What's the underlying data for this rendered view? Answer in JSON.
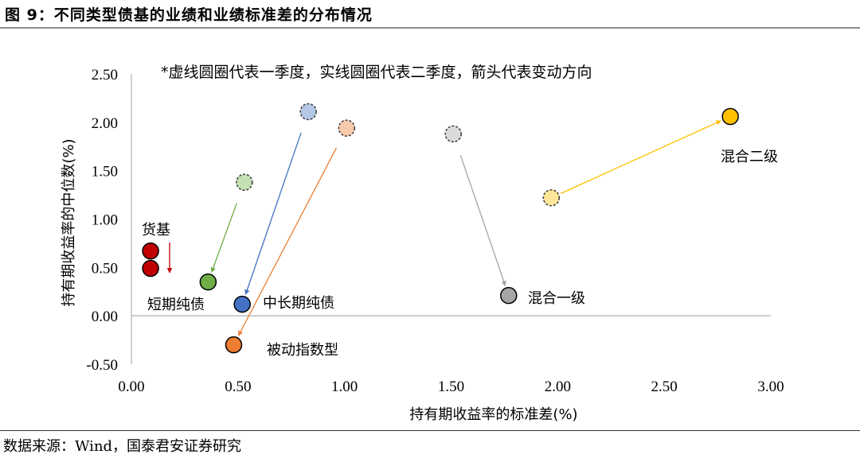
{
  "figure": {
    "title": "图 9：不同类型债基的业绩和业绩标准差的分布情况",
    "source": "数据来源：Wind，国泰君安证券研究"
  },
  "chart_data": {
    "type": "scatter",
    "title": "不同类型债基的业绩和业绩标准差的分布情况",
    "annotation": "*虚线圆圈代表一季度，实线圆圈代表二季度，箭头代表变动方向",
    "xlabel": "持有期收益率的标准差(%)",
    "ylabel": "持有期收益率的中位数(%)",
    "xlim": [
      0,
      3
    ],
    "ylim": [
      -0.5,
      2.5
    ],
    "x_ticks": [
      "0.00",
      "0.50",
      "1.00",
      "1.50",
      "2.00",
      "2.50",
      "3.00"
    ],
    "y_ticks": [
      "2.50",
      "2.00",
      "1.50",
      "1.00",
      "0.50",
      "0.00",
      "-0.50"
    ],
    "grid": false,
    "legend": "none (inline labels)",
    "series": [
      {
        "name": "货基",
        "color": "#c00000",
        "q1_color": "#c00000",
        "q1": {
          "x": 0.09,
          "y": 0.67
        },
        "q2": {
          "x": 0.09,
          "y": 0.49
        },
        "arrow": "separate-down"
      },
      {
        "name": "短期纯债",
        "color": "#70ad47",
        "q1_color": "#c5e0b4",
        "q1": {
          "x": 0.53,
          "y": 1.38
        },
        "q2": {
          "x": 0.36,
          "y": 0.35
        }
      },
      {
        "name": "中长期纯债",
        "color": "#4472c4",
        "q1_color": "#b4c7e7",
        "q1": {
          "x": 0.83,
          "y": 2.11
        },
        "q2": {
          "x": 0.52,
          "y": 0.12
        }
      },
      {
        "name": "被动指数型",
        "color": "#ed7d31",
        "q1_color": "#f8cbad",
        "q1": {
          "x": 1.01,
          "y": 1.94
        },
        "q2": {
          "x": 0.48,
          "y": -0.3
        }
      },
      {
        "name": "混合一级",
        "color": "#a5a5a5",
        "q1_color": "#dbdbdb",
        "q1": {
          "x": 1.51,
          "y": 1.88
        },
        "q2": {
          "x": 1.77,
          "y": 0.21
        }
      },
      {
        "name": "混合二级",
        "color": "#ffc000",
        "q1_color": "#ffe699",
        "q1": {
          "x": 1.97,
          "y": 1.22
        },
        "q2": {
          "x": 2.81,
          "y": 2.06
        }
      }
    ]
  }
}
